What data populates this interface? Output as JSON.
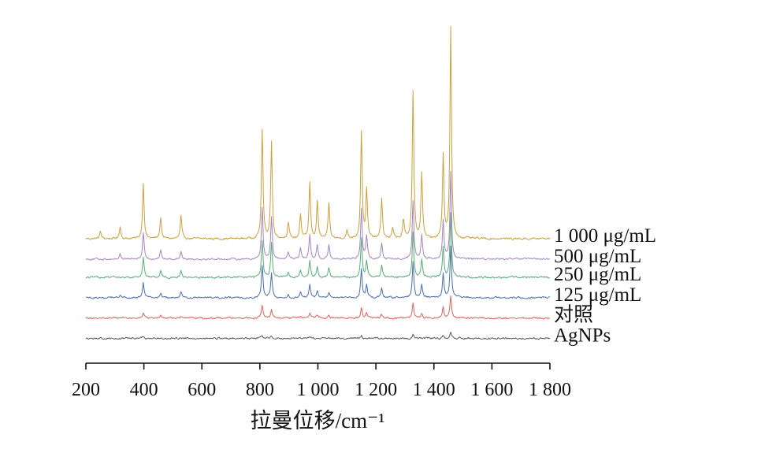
{
  "chart_data": {
    "type": "line",
    "title": "",
    "xlabel": "拉曼位移/cm⁻¹",
    "ylabel": "",
    "xlim": [
      200,
      1800
    ],
    "xticks": [
      {
        "value": 200,
        "label": "200"
      },
      {
        "value": 400,
        "label": "400"
      },
      {
        "value": 600,
        "label": "600"
      },
      {
        "value": 800,
        "label": "800"
      },
      {
        "value": 1000,
        "label": "1 000"
      },
      {
        "value": 1200,
        "label": "1 200"
      },
      {
        "value": 1400,
        "label": "1 400"
      },
      {
        "value": 1600,
        "label": "1 600"
      },
      {
        "value": 1800,
        "label": "1 800"
      }
    ],
    "yaxis_visible": false,
    "grid": false,
    "legend": "series labels at right end of each trace",
    "series": [
      {
        "name": "1 000 μg/mL",
        "color": "#c9a040",
        "baseline": 0.0,
        "peaks": [
          {
            "x": 250,
            "h": 0.07
          },
          {
            "x": 318,
            "h": 0.12
          },
          {
            "x": 398,
            "h": 0.55
          },
          {
            "x": 458,
            "h": 0.21
          },
          {
            "x": 528,
            "h": 0.22
          },
          {
            "x": 808,
            "h": 1.07
          },
          {
            "x": 840,
            "h": 0.95
          },
          {
            "x": 898,
            "h": 0.16
          },
          {
            "x": 940,
            "h": 0.24
          },
          {
            "x": 972,
            "h": 0.55
          },
          {
            "x": 998,
            "h": 0.36
          },
          {
            "x": 1038,
            "h": 0.35
          },
          {
            "x": 1100,
            "h": 0.08
          },
          {
            "x": 1150,
            "h": 1.05
          },
          {
            "x": 1168,
            "h": 0.47
          },
          {
            "x": 1220,
            "h": 0.4
          },
          {
            "x": 1258,
            "h": 0.1
          },
          {
            "x": 1295,
            "h": 0.18
          },
          {
            "x": 1328,
            "h": 1.45
          },
          {
            "x": 1358,
            "h": 0.64
          },
          {
            "x": 1432,
            "h": 0.82
          },
          {
            "x": 1458,
            "h": 2.07
          }
        ]
      },
      {
        "name": "500 μg/mL",
        "color": "#a484be",
        "baseline": -0.2,
        "peaks": [
          {
            "x": 318,
            "h": 0.05
          },
          {
            "x": 398,
            "h": 0.25
          },
          {
            "x": 458,
            "h": 0.08
          },
          {
            "x": 528,
            "h": 0.08
          },
          {
            "x": 808,
            "h": 0.5
          },
          {
            "x": 840,
            "h": 0.42
          },
          {
            "x": 898,
            "h": 0.07
          },
          {
            "x": 940,
            "h": 0.1
          },
          {
            "x": 972,
            "h": 0.24
          },
          {
            "x": 998,
            "h": 0.14
          },
          {
            "x": 1038,
            "h": 0.14
          },
          {
            "x": 1150,
            "h": 0.5
          },
          {
            "x": 1168,
            "h": 0.22
          },
          {
            "x": 1220,
            "h": 0.16
          },
          {
            "x": 1328,
            "h": 0.58
          },
          {
            "x": 1358,
            "h": 0.24
          },
          {
            "x": 1432,
            "h": 0.38
          },
          {
            "x": 1458,
            "h": 0.86
          }
        ]
      },
      {
        "name": "250 μg/mL",
        "color": "#5aaa78",
        "baseline": -0.38,
        "peaks": [
          {
            "x": 398,
            "h": 0.2
          },
          {
            "x": 458,
            "h": 0.07
          },
          {
            "x": 528,
            "h": 0.07
          },
          {
            "x": 808,
            "h": 0.36
          },
          {
            "x": 840,
            "h": 0.33
          },
          {
            "x": 898,
            "h": 0.05
          },
          {
            "x": 940,
            "h": 0.07
          },
          {
            "x": 972,
            "h": 0.17
          },
          {
            "x": 998,
            "h": 0.1
          },
          {
            "x": 1038,
            "h": 0.1
          },
          {
            "x": 1150,
            "h": 0.38
          },
          {
            "x": 1168,
            "h": 0.16
          },
          {
            "x": 1220,
            "h": 0.12
          },
          {
            "x": 1328,
            "h": 0.45
          },
          {
            "x": 1358,
            "h": 0.18
          },
          {
            "x": 1432,
            "h": 0.3
          },
          {
            "x": 1458,
            "h": 0.64
          }
        ]
      },
      {
        "name": "125 μg/mL",
        "color": "#4a6ea8",
        "baseline": -0.58,
        "peaks": [
          {
            "x": 318,
            "h": 0.03
          },
          {
            "x": 398,
            "h": 0.15
          },
          {
            "x": 458,
            "h": 0.05
          },
          {
            "x": 528,
            "h": 0.05
          },
          {
            "x": 808,
            "h": 0.32
          },
          {
            "x": 840,
            "h": 0.24
          },
          {
            "x": 898,
            "h": 0.04
          },
          {
            "x": 940,
            "h": 0.05
          },
          {
            "x": 972,
            "h": 0.13
          },
          {
            "x": 998,
            "h": 0.07
          },
          {
            "x": 1038,
            "h": 0.06
          },
          {
            "x": 1150,
            "h": 0.28
          },
          {
            "x": 1168,
            "h": 0.13
          },
          {
            "x": 1220,
            "h": 0.09
          },
          {
            "x": 1328,
            "h": 0.35
          },
          {
            "x": 1358,
            "h": 0.12
          },
          {
            "x": 1432,
            "h": 0.24
          },
          {
            "x": 1458,
            "h": 0.5
          }
        ]
      },
      {
        "name": "对照",
        "color": "#e0605a",
        "baseline": -0.78,
        "peaks": [
          {
            "x": 398,
            "h": 0.05
          },
          {
            "x": 458,
            "h": 0.02
          },
          {
            "x": 528,
            "h": 0.02
          },
          {
            "x": 808,
            "h": 0.12
          },
          {
            "x": 840,
            "h": 0.09
          },
          {
            "x": 940,
            "h": 0.02
          },
          {
            "x": 972,
            "h": 0.04
          },
          {
            "x": 998,
            "h": 0.03
          },
          {
            "x": 1038,
            "h": 0.03
          },
          {
            "x": 1150,
            "h": 0.1
          },
          {
            "x": 1168,
            "h": 0.05
          },
          {
            "x": 1220,
            "h": 0.04
          },
          {
            "x": 1328,
            "h": 0.14
          },
          {
            "x": 1358,
            "h": 0.05
          },
          {
            "x": 1432,
            "h": 0.1
          },
          {
            "x": 1458,
            "h": 0.21
          }
        ]
      },
      {
        "name": "AgNPs",
        "color": "#5a5a5a",
        "baseline": -0.98,
        "peaks": [
          {
            "x": 398,
            "h": 0.015
          },
          {
            "x": 808,
            "h": 0.03
          },
          {
            "x": 840,
            "h": 0.02
          },
          {
            "x": 972,
            "h": 0.02
          },
          {
            "x": 1150,
            "h": 0.03
          },
          {
            "x": 1328,
            "h": 0.04
          },
          {
            "x": 1432,
            "h": 0.03
          },
          {
            "x": 1458,
            "h": 0.065
          }
        ]
      }
    ]
  }
}
